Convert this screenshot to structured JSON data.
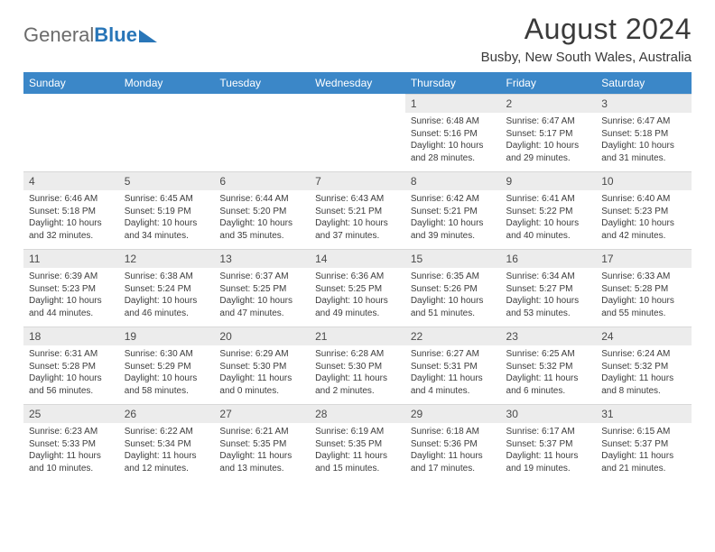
{
  "logo": {
    "text1": "General",
    "text2": "Blue",
    "accent_color": "#2976b8"
  },
  "title": "August 2024",
  "location": "Busby, New South Wales, Australia",
  "colors": {
    "header_bg": "#3b87c8",
    "header_fg": "#ffffff",
    "daynum_bg": "#ececec",
    "text": "#3c3c3c",
    "page_bg": "#ffffff"
  },
  "weekdays": [
    "Sunday",
    "Monday",
    "Tuesday",
    "Wednesday",
    "Thursday",
    "Friday",
    "Saturday"
  ],
  "first_weekday_index": 4,
  "days": [
    {
      "n": 1,
      "sunrise": "6:48 AM",
      "sunset": "5:16 PM",
      "daylight": "10 hours and 28 minutes."
    },
    {
      "n": 2,
      "sunrise": "6:47 AM",
      "sunset": "5:17 PM",
      "daylight": "10 hours and 29 minutes."
    },
    {
      "n": 3,
      "sunrise": "6:47 AM",
      "sunset": "5:18 PM",
      "daylight": "10 hours and 31 minutes."
    },
    {
      "n": 4,
      "sunrise": "6:46 AM",
      "sunset": "5:18 PM",
      "daylight": "10 hours and 32 minutes."
    },
    {
      "n": 5,
      "sunrise": "6:45 AM",
      "sunset": "5:19 PM",
      "daylight": "10 hours and 34 minutes."
    },
    {
      "n": 6,
      "sunrise": "6:44 AM",
      "sunset": "5:20 PM",
      "daylight": "10 hours and 35 minutes."
    },
    {
      "n": 7,
      "sunrise": "6:43 AM",
      "sunset": "5:21 PM",
      "daylight": "10 hours and 37 minutes."
    },
    {
      "n": 8,
      "sunrise": "6:42 AM",
      "sunset": "5:21 PM",
      "daylight": "10 hours and 39 minutes."
    },
    {
      "n": 9,
      "sunrise": "6:41 AM",
      "sunset": "5:22 PM",
      "daylight": "10 hours and 40 minutes."
    },
    {
      "n": 10,
      "sunrise": "6:40 AM",
      "sunset": "5:23 PM",
      "daylight": "10 hours and 42 minutes."
    },
    {
      "n": 11,
      "sunrise": "6:39 AM",
      "sunset": "5:23 PM",
      "daylight": "10 hours and 44 minutes."
    },
    {
      "n": 12,
      "sunrise": "6:38 AM",
      "sunset": "5:24 PM",
      "daylight": "10 hours and 46 minutes."
    },
    {
      "n": 13,
      "sunrise": "6:37 AM",
      "sunset": "5:25 PM",
      "daylight": "10 hours and 47 minutes."
    },
    {
      "n": 14,
      "sunrise": "6:36 AM",
      "sunset": "5:25 PM",
      "daylight": "10 hours and 49 minutes."
    },
    {
      "n": 15,
      "sunrise": "6:35 AM",
      "sunset": "5:26 PM",
      "daylight": "10 hours and 51 minutes."
    },
    {
      "n": 16,
      "sunrise": "6:34 AM",
      "sunset": "5:27 PM",
      "daylight": "10 hours and 53 minutes."
    },
    {
      "n": 17,
      "sunrise": "6:33 AM",
      "sunset": "5:28 PM",
      "daylight": "10 hours and 55 minutes."
    },
    {
      "n": 18,
      "sunrise": "6:31 AM",
      "sunset": "5:28 PM",
      "daylight": "10 hours and 56 minutes."
    },
    {
      "n": 19,
      "sunrise": "6:30 AM",
      "sunset": "5:29 PM",
      "daylight": "10 hours and 58 minutes."
    },
    {
      "n": 20,
      "sunrise": "6:29 AM",
      "sunset": "5:30 PM",
      "daylight": "11 hours and 0 minutes."
    },
    {
      "n": 21,
      "sunrise": "6:28 AM",
      "sunset": "5:30 PM",
      "daylight": "11 hours and 2 minutes."
    },
    {
      "n": 22,
      "sunrise": "6:27 AM",
      "sunset": "5:31 PM",
      "daylight": "11 hours and 4 minutes."
    },
    {
      "n": 23,
      "sunrise": "6:25 AM",
      "sunset": "5:32 PM",
      "daylight": "11 hours and 6 minutes."
    },
    {
      "n": 24,
      "sunrise": "6:24 AM",
      "sunset": "5:32 PM",
      "daylight": "11 hours and 8 minutes."
    },
    {
      "n": 25,
      "sunrise": "6:23 AM",
      "sunset": "5:33 PM",
      "daylight": "11 hours and 10 minutes."
    },
    {
      "n": 26,
      "sunrise": "6:22 AM",
      "sunset": "5:34 PM",
      "daylight": "11 hours and 12 minutes."
    },
    {
      "n": 27,
      "sunrise": "6:21 AM",
      "sunset": "5:35 PM",
      "daylight": "11 hours and 13 minutes."
    },
    {
      "n": 28,
      "sunrise": "6:19 AM",
      "sunset": "5:35 PM",
      "daylight": "11 hours and 15 minutes."
    },
    {
      "n": 29,
      "sunrise": "6:18 AM",
      "sunset": "5:36 PM",
      "daylight": "11 hours and 17 minutes."
    },
    {
      "n": 30,
      "sunrise": "6:17 AM",
      "sunset": "5:37 PM",
      "daylight": "11 hours and 19 minutes."
    },
    {
      "n": 31,
      "sunrise": "6:15 AM",
      "sunset": "5:37 PM",
      "daylight": "11 hours and 21 minutes."
    }
  ],
  "labels": {
    "sunrise": "Sunrise:",
    "sunset": "Sunset:",
    "daylight": "Daylight:"
  }
}
